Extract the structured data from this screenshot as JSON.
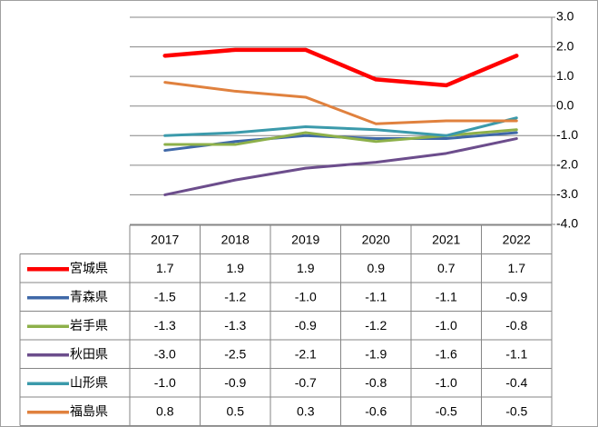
{
  "chart_data": {
    "type": "line",
    "categories": [
      "2017",
      "2018",
      "2019",
      "2020",
      "2021",
      "2022"
    ],
    "series": [
      {
        "name": "宮城県",
        "color": "#ff0000",
        "values": [
          1.7,
          1.9,
          1.9,
          0.9,
          0.7,
          1.7
        ],
        "value_labels": [
          "1.7",
          "1.9",
          "1.9",
          "0.9",
          "0.7",
          "1.7"
        ]
      },
      {
        "name": "青森県",
        "color": "#3f68a8",
        "values": [
          -1.5,
          -1.2,
          -1.0,
          -1.1,
          -1.1,
          -0.9
        ],
        "value_labels": [
          "-1.5",
          "-1.2",
          "-1.0",
          "-1.1",
          "-1.1",
          "-0.9"
        ]
      },
      {
        "name": "岩手県",
        "color": "#8db04a",
        "values": [
          -1.3,
          -1.3,
          -0.9,
          -1.2,
          -1.0,
          -0.8
        ],
        "value_labels": [
          "-1.3",
          "-1.3",
          "-0.9",
          "-1.2",
          "-1.0",
          "-0.8"
        ]
      },
      {
        "name": "秋田県",
        "color": "#6c4d8c",
        "values": [
          -3.0,
          -2.5,
          -2.1,
          -1.9,
          -1.6,
          -1.1
        ],
        "value_labels": [
          "-3.0",
          "-2.5",
          "-2.1",
          "-1.9",
          "-1.6",
          "-1.1"
        ]
      },
      {
        "name": "山形県",
        "color": "#3b9aab",
        "values": [
          -1.0,
          -0.9,
          -0.7,
          -0.8,
          -1.0,
          -0.4
        ],
        "value_labels": [
          "-1.0",
          "-0.9",
          "-0.7",
          "-0.8",
          "-1.0",
          "-0.4"
        ]
      },
      {
        "name": "福島県",
        "color": "#e0813e",
        "values": [
          0.8,
          0.5,
          0.3,
          -0.6,
          -0.5,
          -0.5
        ],
        "value_labels": [
          "0.8",
          "0.5",
          "0.3",
          "-0.6",
          "-0.5",
          "-0.5"
        ]
      }
    ],
    "ylim": [
      -4,
      3
    ],
    "yticks": [
      {
        "value": 3,
        "label": "3.0"
      },
      {
        "value": 2,
        "label": "2.0"
      },
      {
        "value": 1,
        "label": "1.0"
      },
      {
        "value": 0,
        "label": "0.0"
      },
      {
        "value": -1,
        "label": "-1.0"
      },
      {
        "value": -2,
        "label": "-2.0"
      },
      {
        "value": -3,
        "label": "-3.0"
      },
      {
        "value": -4,
        "label": "-4.0"
      }
    ],
    "grid": true
  }
}
